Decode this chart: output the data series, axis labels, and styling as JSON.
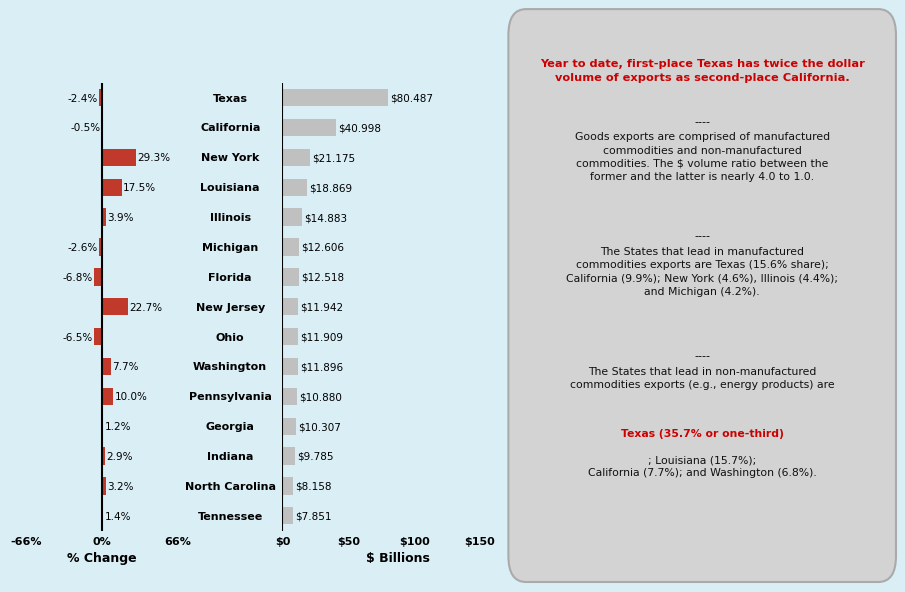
{
  "states": [
    "Texas",
    "California",
    "New York",
    "Louisiana",
    "Illinois",
    "Michigan",
    "Florida",
    "New Jersey",
    "Ohio",
    "Washington",
    "Pennsylvania",
    "Georgia",
    "Indiana",
    "North Carolina",
    "Tennessee"
  ],
  "pct_change": [
    -2.4,
    -0.5,
    29.3,
    17.5,
    3.9,
    -2.6,
    -6.8,
    22.7,
    -6.5,
    7.7,
    10.0,
    1.2,
    2.9,
    3.2,
    1.4
  ],
  "dollar_values": [
    80.487,
    40.998,
    21.175,
    18.869,
    14.883,
    12.606,
    12.518,
    11.942,
    11.909,
    11.896,
    10.88,
    10.307,
    9.785,
    8.158,
    7.851
  ],
  "dollar_labels": [
    "$80.487",
    "$40.998",
    "$21.175",
    "$18.869",
    "$14.883",
    "$12.606",
    "$12.518",
    "$11.942",
    "$11.909",
    "$11.896",
    "$10.880",
    "$10.307",
    "$9.785",
    "$8.158",
    "$7.851"
  ],
  "pct_labels": [
    "-2.4%",
    "-0.5%",
    "29.3%",
    "17.5%",
    "3.9%",
    "-2.6%",
    "-6.8%",
    "22.7%",
    "-6.5%",
    "7.7%",
    "10.0%",
    "1.2%",
    "2.9%",
    "3.2%",
    "1.4%"
  ],
  "bar_color": "#c0392b",
  "bar_color_dollar": "#c0c0c0",
  "bg_color": "#daeef5",
  "text_box_bg": "#d3d3d3",
  "red_text_color": "#cc0000",
  "black_text_color": "#111111",
  "xlim_pct": [
    -66,
    66
  ],
  "xlim_dollar": [
    0,
    175
  ],
  "xlabel_left": "% Change",
  "xlabel_right": "$ Billions",
  "xtick_labels_left": [
    "-66%",
    "0%",
    "66%"
  ],
  "xtick_vals_left": [
    -66,
    0,
    66
  ],
  "xtick_labels_right": [
    "$0",
    "$50",
    "$100",
    "$150"
  ],
  "xtick_vals_right": [
    0,
    50,
    100,
    150
  ]
}
